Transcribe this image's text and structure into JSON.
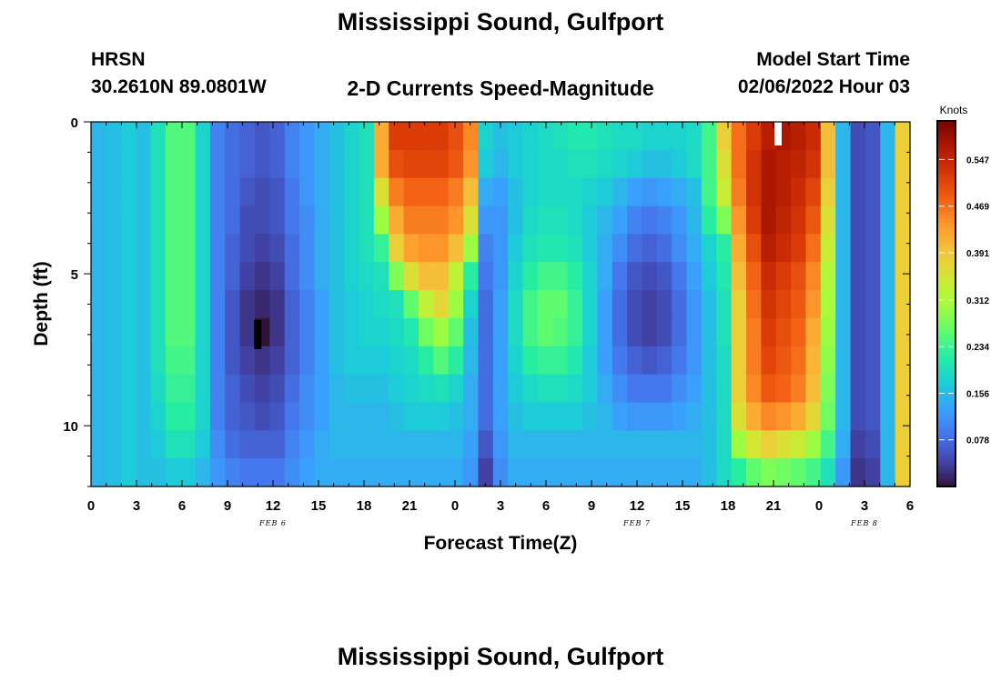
{
  "header": {
    "title": "Mississippi Sound, Gulfport",
    "station_id": "HRSN",
    "station_coords": "30.2610N  89.0801W",
    "subtitle": "2-D Currents Speed-Magnitude",
    "model_start_label": "Model Start Time",
    "model_start_value": "02/06/2022 Hour 03"
  },
  "footer": {
    "title": "Mississippi Sound, Gulfport"
  },
  "chart_data": {
    "type": "heatmap",
    "title": "2-D Currents Speed-Magnitude",
    "xlabel": "Forecast Time(Z)",
    "ylabel": "Depth (ft)",
    "x_unit": "hours since 02/06/2022 00Z",
    "xlim": [
      0,
      54
    ],
    "ylim": [
      0,
      12
    ],
    "y_inverted": true,
    "x_ticks": [
      {
        "value": 0,
        "label": "0"
      },
      {
        "value": 3,
        "label": "3"
      },
      {
        "value": 6,
        "label": "6"
      },
      {
        "value": 9,
        "label": "9"
      },
      {
        "value": 12,
        "label": "12"
      },
      {
        "value": 15,
        "label": "15"
      },
      {
        "value": 18,
        "label": "18"
      },
      {
        "value": 21,
        "label": "21"
      },
      {
        "value": 24,
        "label": "0"
      },
      {
        "value": 27,
        "label": "3"
      },
      {
        "value": 30,
        "label": "6"
      },
      {
        "value": 33,
        "label": "9"
      },
      {
        "value": 36,
        "label": "12"
      },
      {
        "value": 39,
        "label": "15"
      },
      {
        "value": 42,
        "label": "18"
      },
      {
        "value": 45,
        "label": "21"
      },
      {
        "value": 48,
        "label": "0"
      },
      {
        "value": 51,
        "label": "3"
      },
      {
        "value": 54,
        "label": "6"
      }
    ],
    "y_ticks": [
      {
        "value": 0,
        "label": "0"
      },
      {
        "value": 5,
        "label": "5"
      },
      {
        "value": 10,
        "label": "10"
      }
    ],
    "date_labels": [
      {
        "x": 12,
        "label": "FEB 6"
      },
      {
        "x": 36,
        "label": "FEB 7"
      },
      {
        "x": 51,
        "label": "FEB 8"
      }
    ],
    "colorbar": {
      "title": "Knots",
      "range": [
        0.0,
        0.61
      ],
      "ticks": [
        0.078,
        0.156,
        0.234,
        0.312,
        0.391,
        0.469,
        0.547
      ],
      "tick_labels": [
        "0.078",
        "0.156",
        "0.234",
        "0.312",
        "0.391",
        "0.469",
        "0.547"
      ],
      "colormap": [
        "#30123b",
        "#4145ab",
        "#4675ed",
        "#39a2fc",
        "#1bcfd4",
        "#24eca6",
        "#61fc6c",
        "#a4fc3b",
        "#d1e834",
        "#f3c63a",
        "#fe9b2d",
        "#f36315",
        "#d93806",
        "#b11901",
        "#7a0402"
      ]
    },
    "rows_depth_ft": [
      0,
      1,
      2,
      3,
      4,
      5,
      6,
      7,
      8,
      9,
      10,
      11,
      12
    ],
    "columns_hours": [
      0,
      1,
      2,
      3,
      4,
      5,
      6,
      7,
      8,
      9,
      10,
      11,
      12,
      13,
      14,
      15,
      16,
      17,
      18,
      19,
      20,
      21,
      22,
      23,
      24,
      25,
      26,
      27,
      28,
      29,
      30,
      31,
      32,
      33,
      34,
      35,
      36,
      37,
      38,
      39,
      40,
      41,
      42,
      43,
      44,
      45,
      46,
      47,
      48,
      49,
      50,
      51,
      52,
      53,
      54
    ],
    "speed_knots": [
      [
        0.15,
        0.16,
        0.17,
        0.16,
        0.2,
        0.25,
        0.25,
        0.18,
        0.1,
        0.08,
        0.07,
        0.06,
        0.07,
        0.1,
        0.12,
        0.14,
        0.16,
        0.18,
        0.2,
        0.42,
        0.52,
        0.52,
        0.52,
        0.52,
        0.5,
        0.45,
        0.18,
        0.16,
        0.17,
        0.18,
        0.19,
        0.2,
        0.21,
        0.21,
        0.2,
        0.19,
        0.19,
        0.18,
        0.18,
        0.18,
        0.19,
        0.24,
        0.38,
        0.47,
        0.52,
        0.56,
        0.57,
        0.56,
        0.54,
        0.4,
        0.15,
        0.05,
        0.06,
        0.15,
        0.38
      ],
      [
        0.15,
        0.16,
        0.17,
        0.16,
        0.2,
        0.25,
        0.25,
        0.18,
        0.1,
        0.08,
        0.07,
        0.06,
        0.07,
        0.1,
        0.12,
        0.14,
        0.16,
        0.18,
        0.2,
        0.42,
        0.5,
        0.51,
        0.51,
        0.51,
        0.49,
        0.44,
        0.17,
        0.15,
        0.17,
        0.18,
        0.19,
        0.19,
        0.2,
        0.2,
        0.19,
        0.18,
        0.17,
        0.16,
        0.16,
        0.17,
        0.19,
        0.24,
        0.36,
        0.47,
        0.53,
        0.57,
        0.56,
        0.55,
        0.53,
        0.4,
        0.15,
        0.05,
        0.06,
        0.15,
        0.38
      ],
      [
        0.15,
        0.16,
        0.17,
        0.16,
        0.2,
        0.25,
        0.25,
        0.18,
        0.1,
        0.08,
        0.06,
        0.05,
        0.06,
        0.09,
        0.12,
        0.14,
        0.16,
        0.18,
        0.2,
        0.36,
        0.46,
        0.48,
        0.48,
        0.48,
        0.46,
        0.4,
        0.14,
        0.13,
        0.16,
        0.18,
        0.19,
        0.19,
        0.19,
        0.18,
        0.17,
        0.15,
        0.13,
        0.12,
        0.13,
        0.14,
        0.16,
        0.24,
        0.34,
        0.46,
        0.53,
        0.57,
        0.56,
        0.54,
        0.51,
        0.38,
        0.15,
        0.05,
        0.06,
        0.15,
        0.38
      ],
      [
        0.15,
        0.16,
        0.17,
        0.16,
        0.2,
        0.25,
        0.25,
        0.18,
        0.1,
        0.08,
        0.05,
        0.05,
        0.06,
        0.09,
        0.11,
        0.14,
        0.16,
        0.18,
        0.2,
        0.3,
        0.42,
        0.46,
        0.46,
        0.46,
        0.44,
        0.36,
        0.12,
        0.12,
        0.16,
        0.19,
        0.2,
        0.2,
        0.19,
        0.17,
        0.15,
        0.13,
        0.1,
        0.09,
        0.1,
        0.12,
        0.15,
        0.22,
        0.28,
        0.44,
        0.52,
        0.57,
        0.55,
        0.53,
        0.49,
        0.36,
        0.15,
        0.05,
        0.06,
        0.15,
        0.38
      ],
      [
        0.15,
        0.16,
        0.17,
        0.16,
        0.2,
        0.25,
        0.25,
        0.18,
        0.1,
        0.07,
        0.05,
        0.04,
        0.05,
        0.08,
        0.11,
        0.14,
        0.16,
        0.18,
        0.2,
        0.23,
        0.38,
        0.43,
        0.44,
        0.44,
        0.4,
        0.3,
        0.1,
        0.12,
        0.17,
        0.2,
        0.21,
        0.21,
        0.2,
        0.17,
        0.14,
        0.11,
        0.08,
        0.07,
        0.08,
        0.11,
        0.14,
        0.18,
        0.22,
        0.42,
        0.5,
        0.56,
        0.54,
        0.52,
        0.47,
        0.34,
        0.15,
        0.05,
        0.06,
        0.15,
        0.38
      ],
      [
        0.15,
        0.16,
        0.17,
        0.16,
        0.2,
        0.25,
        0.25,
        0.18,
        0.1,
        0.07,
        0.04,
        0.03,
        0.04,
        0.08,
        0.11,
        0.14,
        0.16,
        0.18,
        0.19,
        0.2,
        0.28,
        0.36,
        0.4,
        0.4,
        0.33,
        0.22,
        0.09,
        0.12,
        0.18,
        0.22,
        0.24,
        0.24,
        0.22,
        0.18,
        0.14,
        0.09,
        0.06,
        0.05,
        0.06,
        0.09,
        0.13,
        0.17,
        0.21,
        0.4,
        0.48,
        0.54,
        0.52,
        0.5,
        0.45,
        0.32,
        0.15,
        0.05,
        0.06,
        0.15,
        0.38
      ],
      [
        0.15,
        0.16,
        0.17,
        0.16,
        0.2,
        0.25,
        0.25,
        0.18,
        0.1,
        0.06,
        0.03,
        0.02,
        0.03,
        0.07,
        0.1,
        0.13,
        0.16,
        0.17,
        0.18,
        0.19,
        0.2,
        0.26,
        0.33,
        0.37,
        0.3,
        0.18,
        0.08,
        0.13,
        0.19,
        0.24,
        0.26,
        0.26,
        0.23,
        0.18,
        0.13,
        0.08,
        0.05,
        0.04,
        0.05,
        0.08,
        0.12,
        0.16,
        0.2,
        0.38,
        0.47,
        0.53,
        0.51,
        0.49,
        0.44,
        0.31,
        0.15,
        0.05,
        0.06,
        0.15,
        0.38
      ],
      [
        0.15,
        0.16,
        0.17,
        0.16,
        0.2,
        0.25,
        0.25,
        0.18,
        0.1,
        0.06,
        0.03,
        0.0,
        0.03,
        0.07,
        0.1,
        0.13,
        0.16,
        0.17,
        0.18,
        0.18,
        0.19,
        0.21,
        0.27,
        0.3,
        0.26,
        0.16,
        0.08,
        0.13,
        0.19,
        0.24,
        0.26,
        0.25,
        0.23,
        0.18,
        0.13,
        0.08,
        0.05,
        0.04,
        0.05,
        0.08,
        0.12,
        0.16,
        0.2,
        0.38,
        0.46,
        0.52,
        0.5,
        0.48,
        0.42,
        0.3,
        0.15,
        0.05,
        0.06,
        0.15,
        0.38
      ],
      [
        0.15,
        0.16,
        0.17,
        0.16,
        0.2,
        0.24,
        0.24,
        0.18,
        0.1,
        0.06,
        0.04,
        0.03,
        0.04,
        0.07,
        0.1,
        0.13,
        0.16,
        0.17,
        0.17,
        0.17,
        0.18,
        0.19,
        0.22,
        0.25,
        0.22,
        0.15,
        0.08,
        0.13,
        0.18,
        0.22,
        0.23,
        0.23,
        0.21,
        0.17,
        0.13,
        0.09,
        0.07,
        0.06,
        0.07,
        0.09,
        0.12,
        0.16,
        0.19,
        0.38,
        0.46,
        0.51,
        0.49,
        0.47,
        0.41,
        0.29,
        0.15,
        0.05,
        0.06,
        0.15,
        0.38
      ],
      [
        0.15,
        0.16,
        0.17,
        0.16,
        0.19,
        0.23,
        0.23,
        0.18,
        0.1,
        0.07,
        0.05,
        0.04,
        0.05,
        0.08,
        0.11,
        0.13,
        0.15,
        0.16,
        0.16,
        0.16,
        0.17,
        0.18,
        0.19,
        0.2,
        0.18,
        0.14,
        0.08,
        0.13,
        0.17,
        0.19,
        0.2,
        0.2,
        0.19,
        0.17,
        0.14,
        0.11,
        0.09,
        0.09,
        0.09,
        0.11,
        0.13,
        0.16,
        0.19,
        0.38,
        0.45,
        0.49,
        0.48,
        0.46,
        0.4,
        0.28,
        0.15,
        0.05,
        0.06,
        0.15,
        0.38
      ],
      [
        0.15,
        0.16,
        0.17,
        0.16,
        0.18,
        0.22,
        0.22,
        0.18,
        0.1,
        0.07,
        0.06,
        0.05,
        0.06,
        0.09,
        0.11,
        0.13,
        0.15,
        0.15,
        0.15,
        0.15,
        0.16,
        0.17,
        0.17,
        0.17,
        0.16,
        0.14,
        0.08,
        0.13,
        0.16,
        0.17,
        0.17,
        0.17,
        0.17,
        0.16,
        0.15,
        0.13,
        0.12,
        0.12,
        0.12,
        0.13,
        0.14,
        0.16,
        0.19,
        0.36,
        0.42,
        0.45,
        0.44,
        0.42,
        0.37,
        0.27,
        0.15,
        0.05,
        0.06,
        0.15,
        0.38
      ],
      [
        0.15,
        0.16,
        0.17,
        0.16,
        0.17,
        0.2,
        0.2,
        0.17,
        0.11,
        0.08,
        0.07,
        0.07,
        0.07,
        0.1,
        0.12,
        0.14,
        0.15,
        0.15,
        0.15,
        0.15,
        0.15,
        0.15,
        0.15,
        0.15,
        0.15,
        0.13,
        0.06,
        0.12,
        0.15,
        0.15,
        0.15,
        0.15,
        0.15,
        0.15,
        0.15,
        0.15,
        0.15,
        0.15,
        0.15,
        0.15,
        0.15,
        0.16,
        0.19,
        0.3,
        0.35,
        0.38,
        0.36,
        0.34,
        0.3,
        0.24,
        0.14,
        0.04,
        0.05,
        0.15,
        0.38
      ],
      [
        0.15,
        0.16,
        0.17,
        0.16,
        0.16,
        0.17,
        0.17,
        0.15,
        0.12,
        0.1,
        0.09,
        0.09,
        0.09,
        0.11,
        0.13,
        0.14,
        0.14,
        0.14,
        0.14,
        0.14,
        0.14,
        0.14,
        0.14,
        0.14,
        0.14,
        0.12,
        0.04,
        0.11,
        0.14,
        0.14,
        0.14,
        0.14,
        0.14,
        0.14,
        0.14,
        0.14,
        0.14,
        0.14,
        0.14,
        0.14,
        0.14,
        0.16,
        0.19,
        0.22,
        0.26,
        0.28,
        0.27,
        0.26,
        0.24,
        0.2,
        0.12,
        0.03,
        0.04,
        0.15,
        0.38
      ]
    ],
    "markers": [
      {
        "x": 11,
        "y": 7,
        "label": "minimum",
        "color": "#000000"
      },
      {
        "x": 45.3,
        "y": 0.3,
        "label": "maximum",
        "color": "#ffffff"
      }
    ]
  }
}
